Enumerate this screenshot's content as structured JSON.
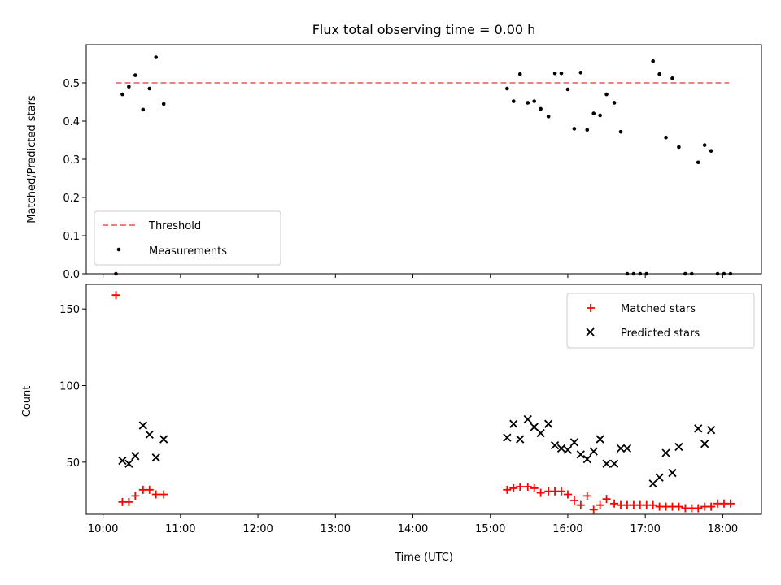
{
  "chart_data": [
    {
      "type": "scatter",
      "title": "Flux total observing time = 0.00 h",
      "xlabel": "",
      "ylabel": "Matched/Predicted stars",
      "xlim": [
        "09:47",
        "18:30"
      ],
      "ylim": [
        0,
        0.6
      ],
      "yticks": [
        0.0,
        0.1,
        0.2,
        0.3,
        0.4,
        0.5
      ],
      "ytick_labels": [
        "0.0",
        "0.1",
        "0.2",
        "0.3",
        "0.4",
        "0.5"
      ],
      "threshold": {
        "name": "Threshold",
        "value": 0.5,
        "x": [
          "10:10",
          "18:05"
        ],
        "color": "#f08080"
      },
      "legend": {
        "placement": "lower-left",
        "entries": [
          "Threshold",
          "Measurements"
        ]
      },
      "series": [
        {
          "name": "Measurements",
          "color": "#000000",
          "marker": "dot",
          "x": [
            "10:10",
            "10:15",
            "10:20",
            "10:25",
            "10:31",
            "10:36",
            "10:41",
            "10:47",
            "15:13",
            "15:18",
            "15:23",
            "15:29",
            "15:34",
            "15:39",
            "15:45",
            "15:50",
            "15:55",
            "16:00",
            "16:05",
            "16:10",
            "16:15",
            "16:20",
            "16:25",
            "16:30",
            "16:36",
            "16:41",
            "16:46",
            "16:51",
            "16:56",
            "17:01",
            "17:06",
            "17:11",
            "17:16",
            "17:21",
            "17:26",
            "17:31",
            "17:36",
            "17:41",
            "17:46",
            "17:51",
            "17:56",
            "18:01",
            "18:06"
          ],
          "y": [
            0.0,
            0.47,
            0.49,
            0.52,
            0.43,
            0.485,
            0.567,
            0.445,
            0.485,
            0.452,
            0.523,
            0.448,
            0.452,
            0.432,
            0.412,
            0.525,
            0.525,
            0.483,
            0.38,
            0.527,
            0.377,
            0.42,
            0.415,
            0.47,
            0.448,
            0.372,
            0.0,
            0.0,
            0.0,
            0.0,
            0.557,
            0.523,
            0.357,
            0.512,
            0.332,
            0.0,
            0.0,
            0.292,
            0.337,
            0.322,
            0.0,
            0.0,
            0.0
          ]
        }
      ]
    },
    {
      "type": "scatter",
      "title": "",
      "xlabel": "Time (UTC)",
      "ylabel": "Count",
      "xlim": [
        "09:47",
        "18:30"
      ],
      "ylim": [
        16,
        166
      ],
      "yticks": [
        50,
        100,
        150
      ],
      "ytick_labels": [
        "50",
        "100",
        "150"
      ],
      "xticks": [
        "10:00",
        "11:00",
        "12:00",
        "13:00",
        "14:00",
        "15:00",
        "16:00",
        "17:00",
        "18:00"
      ],
      "xtick_labels": [
        "10:00",
        "11:00",
        "12:00",
        "13:00",
        "14:00",
        "15:00",
        "16:00",
        "17:00",
        "18:00"
      ],
      "legend": {
        "placement": "top-right",
        "entries": [
          "Matched stars",
          "Predicted stars"
        ]
      },
      "series": [
        {
          "name": "Matched stars",
          "color": "#ff0000",
          "marker": "plus",
          "x": [
            "10:10",
            "10:15",
            "10:20",
            "10:25",
            "10:31",
            "10:36",
            "10:41",
            "10:47",
            "15:13",
            "15:18",
            "15:23",
            "15:29",
            "15:34",
            "15:39",
            "15:45",
            "15:50",
            "15:55",
            "16:00",
            "16:05",
            "16:10",
            "16:15",
            "16:20",
            "16:25",
            "16:30",
            "16:36",
            "16:41",
            "16:46",
            "16:51",
            "16:56",
            "17:01",
            "17:06",
            "17:11",
            "17:16",
            "17:21",
            "17:26",
            "17:31",
            "17:36",
            "17:41",
            "17:46",
            "17:51",
            "17:56",
            "18:01",
            "18:06"
          ],
          "y": [
            159,
            24,
            24,
            28,
            32,
            32,
            29,
            29,
            32,
            33,
            34,
            34,
            33,
            30,
            31,
            31,
            31,
            29,
            25,
            22,
            28,
            19,
            22,
            26,
            23,
            22,
            22,
            22,
            22,
            22,
            22,
            21,
            21,
            21,
            21,
            20,
            20,
            20,
            21,
            21,
            23,
            23,
            23
          ]
        },
        {
          "name": "Predicted stars",
          "color": "#000000",
          "marker": "x",
          "x": [
            "10:15",
            "10:20",
            "10:25",
            "10:31",
            "10:36",
            "10:41",
            "10:47",
            "15:13",
            "15:18",
            "15:23",
            "15:29",
            "15:34",
            "15:39",
            "15:45",
            "15:50",
            "15:55",
            "16:00",
            "16:05",
            "16:10",
            "16:15",
            "16:20",
            "16:25",
            "16:30",
            "16:36",
            "16:41",
            "16:46",
            "17:06",
            "17:11",
            "17:16",
            "17:21",
            "17:26",
            "17:41",
            "17:46",
            "17:51"
          ],
          "y": [
            51,
            49,
            54,
            74,
            68,
            53,
            65,
            66,
            75,
            65,
            78,
            73,
            69,
            75,
            61,
            59,
            58,
            63,
            55,
            52,
            57,
            65,
            49,
            49,
            59,
            59,
            36,
            40,
            56,
            43,
            60,
            72,
            62,
            71
          ]
        }
      ]
    }
  ]
}
